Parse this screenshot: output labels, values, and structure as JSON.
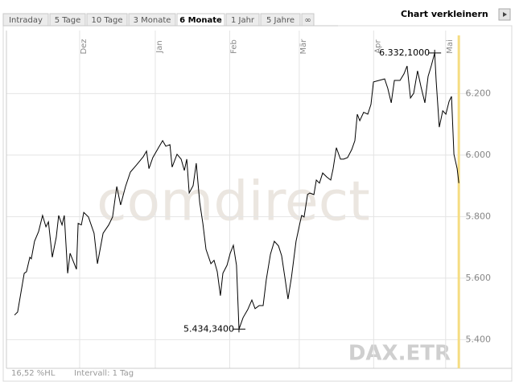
{
  "tabs": {
    "items": [
      "Intraday",
      "5 Tage",
      "10 Tage",
      "3 Monate",
      "6 Monate",
      "1 Jahr",
      "5 Jahre",
      "∞"
    ],
    "selected": 4
  },
  "toolbar": {
    "button": "Chart verkleinern"
  },
  "chart_data": {
    "type": "line",
    "watermark": "comdirect",
    "index_label": "DAX.ETR",
    "footer": {
      "range": "16,52 %HL",
      "interval": "Intervall: 1 Tag"
    },
    "x": [
      3.3,
      4.6,
      7.3,
      8.2,
      9.6,
      10.2,
      11.5,
      13.2,
      14.8,
      16.2,
      17.2,
      18.8,
      20.4,
      21.4,
      22.8,
      23.7,
      25.1,
      26.1,
      28.7,
      29.4,
      30.7,
      31.7,
      33.6,
      35.9,
      37.3,
      39.6,
      41.9,
      43.5,
      45.2,
      46.8,
      48.8,
      50.8,
      53.4,
      56.1,
      57.4,
      58.4,
      60.0,
      62.3,
      64.0,
      65.3,
      67.0,
      67.9,
      69.9,
      71.6,
      72.9,
      73.9,
      74.9,
      76.5,
      77.8,
      79.2,
      80.5,
      81.8,
      83.8,
      85.1,
      86.4,
      87.7,
      88.7,
      90.4,
      91.7,
      93.0,
      94.3,
      95.3,
      97.0,
      98.9,
      100.6,
      101.9,
      103.6,
      105.2,
      106.5,
      108.2,
      109.8,
      111.5,
      112.8,
      114.1,
      115.4,
      116.8,
      118.7,
      120.1,
      121.0,
      122.0,
      123.4,
      124.3,
      126.0,
      127.0,
      128.3,
      129.6,
      131.3,
      132.9,
      133.9,
      135.2,
      136.9,
      138.2,
      139.8,
      141.5,
      142.8,
      143.8,
      144.8,
      146.4,
      148.1,
      149.4,
      150.4,
      152.7,
      155.0,
      156.3,
      157.7,
      159.0,
      161.3,
      162.9,
      164.2,
      165.6,
      166.9,
      168.5,
      169.9,
      171.5,
      172.8,
      174.1,
      175.5,
      176.1,
      177.4,
      178.8,
      180.1,
      181.4,
      182.4,
      183.4,
      184.7,
      185.4
    ],
    "series": [
      {
        "color": "#000000",
        "values": [
          5480,
          5490,
          5616,
          5621,
          5668,
          5663,
          5720,
          5752,
          5804,
          5767,
          5783,
          5668,
          5733,
          5804,
          5773,
          5804,
          5616,
          5681,
          5629,
          5778,
          5773,
          5814,
          5799,
          5746,
          5647,
          5746,
          5773,
          5799,
          5898,
          5838,
          5898,
          5945,
          5969,
          5995,
          6013,
          5956,
          5992,
          6024,
          6047,
          6029,
          6034,
          5961,
          6003,
          5987,
          5950,
          5987,
          5877,
          5901,
          5974,
          5846,
          5778,
          5694,
          5647,
          5658,
          5621,
          5543,
          5616,
          5642,
          5681,
          5707,
          5642,
          5434.34,
          5472,
          5498,
          5529,
          5501,
          5511,
          5511,
          5595,
          5678,
          5720,
          5705,
          5673,
          5603,
          5532,
          5603,
          5720,
          5773,
          5804,
          5799,
          5872,
          5877,
          5872,
          5919,
          5909,
          5942,
          5929,
          5919,
          5956,
          6024,
          5987,
          5987,
          5992,
          6018,
          6047,
          6133,
          6112,
          6139,
          6133,
          6165,
          6238,
          6243,
          6248,
          6217,
          6170,
          6243,
          6243,
          6264,
          6290,
          6186,
          6201,
          6274,
          6222,
          6170,
          6256,
          6290,
          6332.1,
          6243,
          6091,
          6144,
          6133,
          6175,
          6191,
          6003,
          5956,
          5909
        ]
      }
    ],
    "annotations": [
      {
        "x": 95.3,
        "value": 5434.34,
        "label": "5.434,3400"
      },
      {
        "x": 175.5,
        "value": 6332.1,
        "label": "6.332,1000"
      }
    ],
    "xlim": [
      0,
      186
    ],
    "xticks": [
      {
        "value": 30,
        "label": "Dez"
      },
      {
        "value": 61,
        "label": "Jan"
      },
      {
        "value": 91.5,
        "label": "Feb"
      },
      {
        "value": 120,
        "label": "Mär"
      },
      {
        "value": 150.5,
        "label": "Apr"
      },
      {
        "value": 180,
        "label": "Mai"
      }
    ],
    "ylim": [
      5307,
      6405
    ],
    "yticks": [
      {
        "value": 5400,
        "label": "5.400"
      },
      {
        "value": 5600,
        "label": "5.600"
      },
      {
        "value": 5800,
        "label": "5.800"
      },
      {
        "value": 6000,
        "label": "6.000"
      },
      {
        "value": 6200,
        "label": "6.200"
      }
    ],
    "grid": true,
    "current_line_color": "#f5dc82"
  }
}
